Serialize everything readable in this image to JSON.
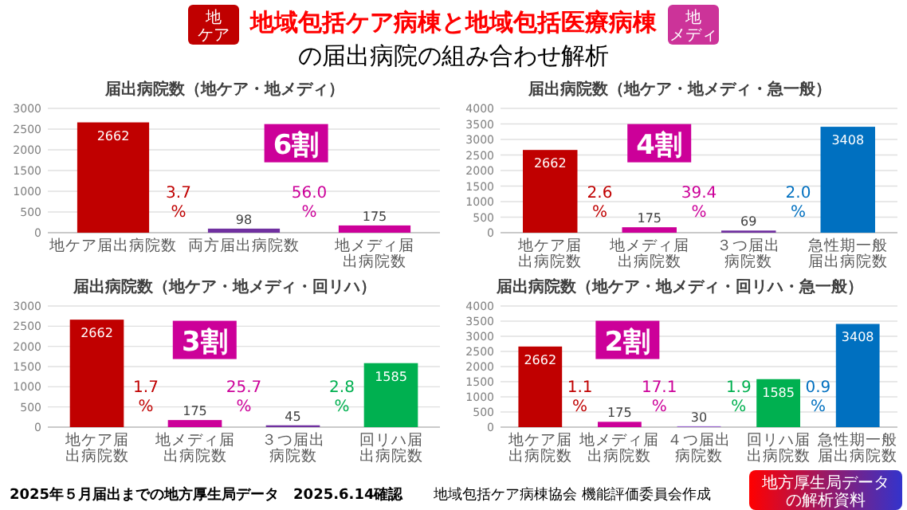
{
  "chart_data": [
    {
      "type": "other",
      "title": "地域包括ケア病棟と地域包括医療病棟",
      "subtitle": "の届出病院の組み合わせ解析",
      "annotations": [
        "地ケア",
        "地メディ",
        "2025年５月届出までの地方厚生局データ　2025.6.14確認",
        "地域包括ケア病棟協会 機能評価委員会作成",
        "地方厚生局データ",
        "の解析資料"
      ]
    },
    {
      "type": "bar",
      "title": "届出病院数（地ケア・地メディ）",
      "categories": [
        "地ケア届出病院数",
        "両方届出病院数",
        "地メディ届出病院数"
      ],
      "values": [
        2662,
        98,
        175
      ],
      "colors": [
        "#c00000",
        "#7030a0",
        "#cc0099"
      ],
      "ylim": [
        0,
        3000
      ],
      "yticks": [
        0,
        500,
        1000,
        1500,
        2000,
        2500,
        3000
      ],
      "grid": "y",
      "data_labels": true,
      "annotations": [
        "6割",
        "3.7%",
        "56.0%"
      ]
    },
    {
      "type": "bar",
      "title": "届出病院数（地ケア・地メディ・急一般）",
      "categories": [
        "地ケア届出病院数",
        "地メディ届出病院数",
        "３つ届出病院数",
        "急性期一般届出病院数"
      ],
      "values": [
        2662,
        175,
        69,
        3408
      ],
      "colors": [
        "#c00000",
        "#cc0099",
        "#7030a0",
        "#0070c0"
      ],
      "ylim": [
        0,
        4000
      ],
      "yticks": [
        0,
        500,
        1000,
        1500,
        2000,
        2500,
        3000,
        3500,
        4000
      ],
      "grid": "y",
      "data_labels": true,
      "annotations": [
        "4割",
        "2.6%",
        "39.4%",
        "2.0%"
      ]
    },
    {
      "type": "bar",
      "title": "届出病院数（地ケア・地メディ・回リハ）",
      "categories": [
        "地ケア届出病院数",
        "地メディ届出病院数",
        "３つ届出病院数",
        "回リハ届出病院数"
      ],
      "values": [
        2662,
        175,
        45,
        1585
      ],
      "colors": [
        "#c00000",
        "#cc0099",
        "#7030a0",
        "#00b050"
      ],
      "ylim": [
        0,
        3000
      ],
      "yticks": [
        0,
        500,
        1000,
        1500,
        2000,
        2500,
        3000
      ],
      "grid": "y",
      "data_labels": true,
      "annotations": [
        "3割",
        "1.7%",
        "25.7%",
        "2.8%"
      ]
    },
    {
      "type": "bar",
      "title": "届出病院数（地ケア・地メディ・回リハ・急一般）",
      "categories": [
        "地ケア届出病院数",
        "地メディ届出病院数",
        "４つ届出病院数",
        "回リハ届出病院数",
        "急性期一般届出病院数"
      ],
      "values": [
        2662,
        175,
        30,
        1585,
        3408
      ],
      "colors": [
        "#c00000",
        "#cc0099",
        "#9966cc",
        "#00b050",
        "#0070c0"
      ],
      "ylim": [
        0,
        4000
      ],
      "yticks": [
        0,
        500,
        1000,
        1500,
        2000,
        2500,
        3000,
        3500,
        4000
      ],
      "grid": "y",
      "data_labels": true,
      "annotations": [
        "2割",
        "1.1%",
        "17.1%",
        "1.9%",
        "0.9%"
      ]
    }
  ]
}
